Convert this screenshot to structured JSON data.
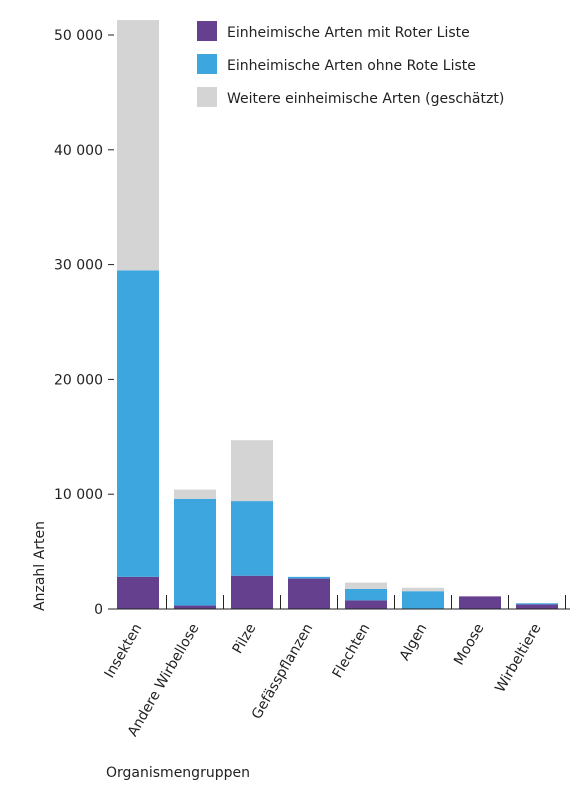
{
  "chart_data": {
    "type": "bar",
    "stacked": true,
    "categories": [
      "Insekten",
      "Andere Wirbellose",
      "Pilze",
      "Gefässpflanzen",
      "Flechten",
      "Algen",
      "Moose",
      "Wirbeltiere"
    ],
    "series": [
      {
        "name": "Einheimische Arten mit Roter Liste",
        "color": "#65408f",
        "values": [
          2800,
          300,
          2900,
          2650,
          750,
          0,
          1100,
          400
        ]
      },
      {
        "name": "Einheimische Arten ohne Rote Liste",
        "color": "#3da6df",
        "values": [
          26700,
          9300,
          6500,
          150,
          1000,
          1550,
          0,
          100
        ]
      },
      {
        "name": "Weitere einheimische Arten (geschätzt)",
        "color": "#d4d4d4",
        "values": [
          21800,
          800,
          5300,
          0,
          550,
          300,
          0,
          0
        ]
      }
    ],
    "yticks": [
      "0",
      "10 000",
      "20 000",
      "30 000",
      "40 000",
      "50 000"
    ],
    "ytick_values": [
      0,
      10000,
      20000,
      30000,
      40000,
      50000
    ],
    "ylim": [
      0,
      52000
    ],
    "xlabel": "Organismengruppen",
    "ylabel": "Anzahl Arten",
    "legend_position": "top-right"
  }
}
